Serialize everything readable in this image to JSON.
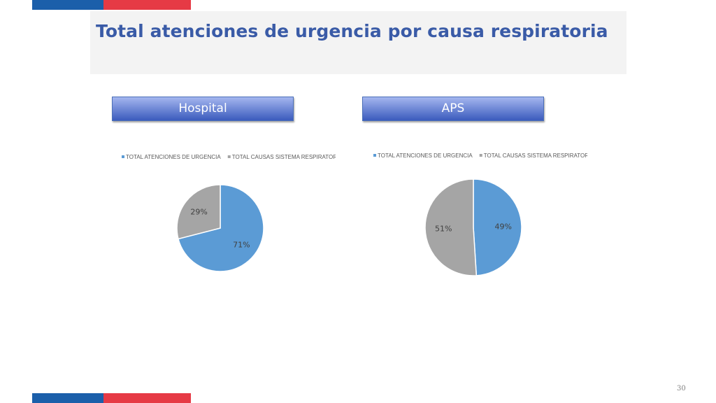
{
  "header": {
    "title": "Total atenciones de urgencia por causa respiratoria"
  },
  "colors": {
    "brand_blue": "#1b5faa",
    "brand_red": "#e63a45",
    "title_blue": "#3a5ba7",
    "button_top": "#a4b6ef",
    "button_bottom": "#3b5bbd",
    "slice_blue": "#5b9bd5",
    "slice_gray": "#a5a5a5"
  },
  "sections": [
    {
      "label": "Hospital"
    },
    {
      "label": "APS"
    }
  ],
  "chart_data": [
    {
      "type": "pie",
      "legend": [
        "TOTAL ATENCIONES DE URGENCIA",
        "TOTAL CAUSAS SISTEMA RESPIRATORIO"
      ],
      "legend_position": "top",
      "slices": [
        {
          "name": "TOTAL ATENCIONES DE URGENCIA",
          "value": 71,
          "label": "71%"
        },
        {
          "name": "TOTAL CAUSAS SISTEMA RESPIRATORIO",
          "value": 29,
          "label": "29%"
        }
      ]
    },
    {
      "type": "pie",
      "legend": [
        "TOTAL ATENCIONES DE URGENCIA",
        "TOTAL CAUSAS SISTEMA RESPIRATORIO"
      ],
      "legend_position": "top",
      "slices": [
        {
          "name": "TOTAL ATENCIONES DE URGENCIA",
          "value": 49,
          "label": "49%"
        },
        {
          "name": "TOTAL CAUSAS SISTEMA RESPIRATORIO",
          "value": 51,
          "label": "51%"
        }
      ]
    }
  ],
  "footer": {
    "page_number": "30"
  }
}
